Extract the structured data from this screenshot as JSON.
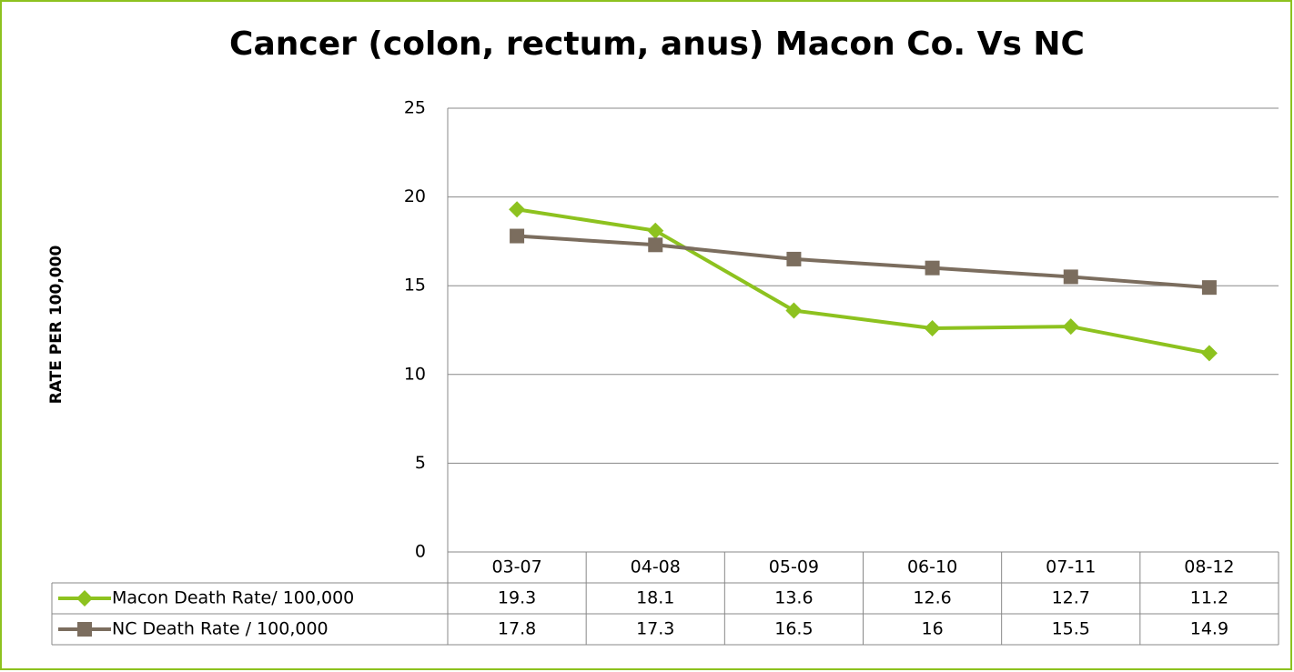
{
  "chart_data": {
    "type": "line",
    "title": "Cancer (colon, rectum, anus) Macon Co. Vs NC",
    "y_label": "RATE PER 100,000",
    "categories": [
      "03-07",
      "04-08",
      "05-09",
      "06-10",
      "07-11",
      "08-12"
    ],
    "series": [
      {
        "name": "Macon Death Rate/ 100,000",
        "color": "#8dc21f",
        "marker": "diamond",
        "values": [
          19.3,
          18.1,
          13.6,
          12.6,
          12.7,
          11.2
        ]
      },
      {
        "name": "NC Death Rate / 100,000",
        "color": "#7b6d5e",
        "marker": "square",
        "values": [
          17.8,
          17.3,
          16.5,
          16,
          15.5,
          14.9
        ]
      }
    ],
    "ylim": [
      0,
      25
    ],
    "yticks": [
      0,
      5,
      10,
      15,
      20,
      25
    ],
    "grid": true,
    "data_table": true
  }
}
